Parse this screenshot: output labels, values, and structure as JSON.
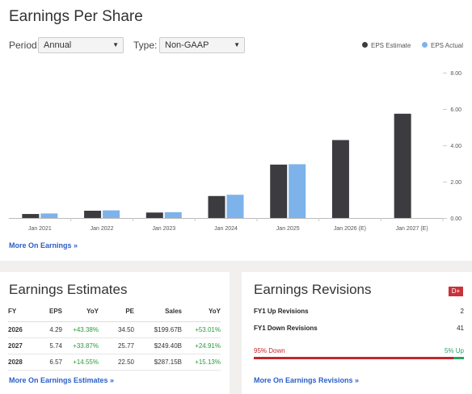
{
  "header": {
    "title": "Earnings Per Share",
    "period_label": "Period:",
    "period_value": "Annual",
    "type_label": "Type:",
    "type_value": "Non-GAAP",
    "legend": [
      {
        "label": "EPS Estimate",
        "color": "#3c3c40"
      },
      {
        "label": "EPS Actual",
        "color": "#7db3ea"
      }
    ]
  },
  "chart_data": {
    "type": "bar",
    "categories": [
      "Jan 2021",
      "Jan 2022",
      "Jan 2023",
      "Jan 2024",
      "Jan 2025",
      "Jan 2026 (E)",
      "Jan 2027 (E)"
    ],
    "series": [
      {
        "name": "EPS Estimate",
        "color": "#3c3c40",
        "values": [
          0.22,
          0.4,
          0.3,
          1.21,
          2.94,
          4.29,
          5.74
        ]
      },
      {
        "name": "EPS Actual",
        "color": "#7db3ea",
        "values": [
          0.25,
          0.42,
          0.32,
          1.28,
          2.96,
          null,
          null
        ]
      }
    ],
    "yticks": [
      "0.00",
      "2.00",
      "4.00",
      "6.00",
      "8.00"
    ],
    "ylim": [
      0,
      8
    ],
    "grid": false,
    "legend": "top-right"
  },
  "links": {
    "more_earnings": "More On Earnings »",
    "more_estimates": "More On Earnings Estimates »",
    "more_revisions": "More On Earnings Revisions »"
  },
  "estimates": {
    "title": "Earnings Estimates",
    "columns": [
      "FY",
      "EPS",
      "YoY",
      "PE",
      "Sales",
      "YoY"
    ],
    "rows": [
      [
        "2026",
        "4.29",
        "+43.38%",
        "34.50",
        "$199.67B",
        "+53.01%"
      ],
      [
        "2027",
        "5.74",
        "+33.87%",
        "25.77",
        "$249.40B",
        "+24.91%"
      ],
      [
        "2028",
        "6.57",
        "+14.55%",
        "22.50",
        "$287.15B",
        "+15.13%"
      ]
    ]
  },
  "revisions": {
    "title": "Earnings Revisions",
    "grade": "D+",
    "up_label": "FY1 Up Revisions",
    "up_value": "2",
    "down_label": "FY1 Down Revisions",
    "down_value": "41",
    "down_pct_label": "95% Down",
    "up_pct_label": "5% Up",
    "up_fraction": 0.05,
    "down_color": "#c0272d",
    "up_color": "#2e9e6a"
  }
}
